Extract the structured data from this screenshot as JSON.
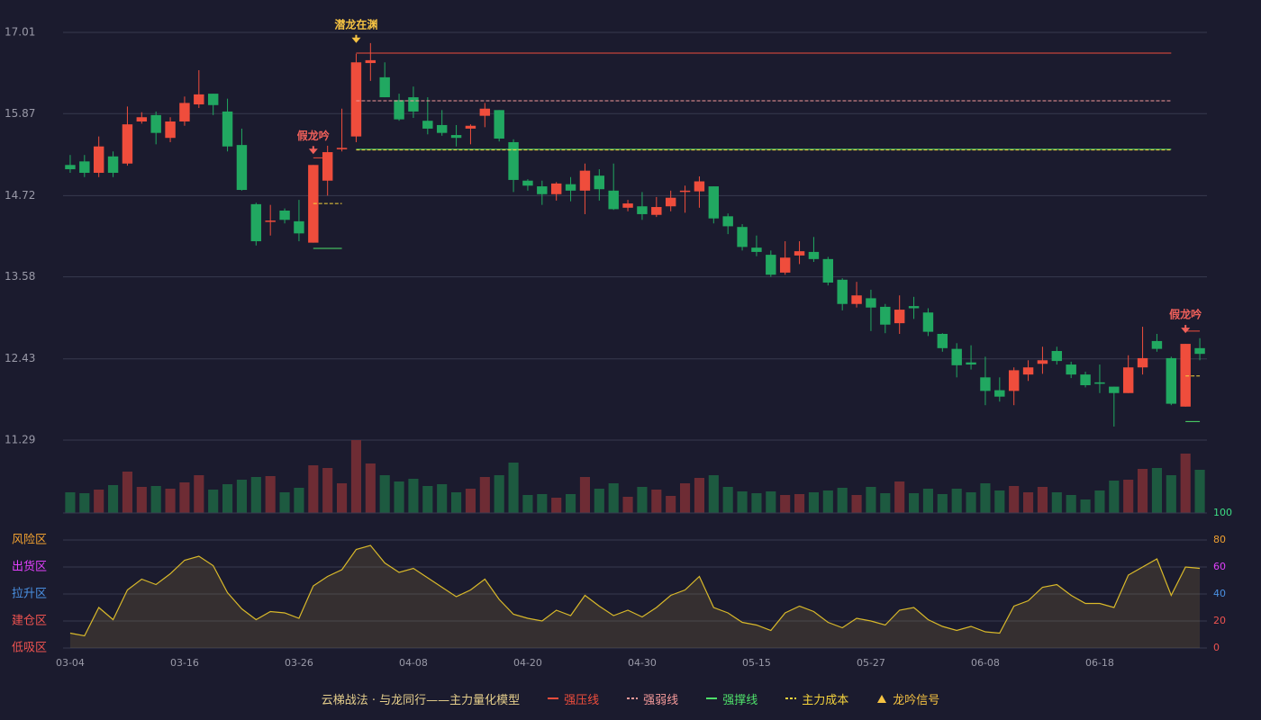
{
  "chart_data": {
    "type": "candlestick",
    "categories": [
      "03-04",
      null,
      null,
      null,
      null,
      null,
      null,
      null,
      "03-16",
      null,
      null,
      null,
      null,
      null,
      null,
      null,
      "03-26",
      null,
      null,
      null,
      null,
      null,
      null,
      null,
      "04-08",
      null,
      null,
      null,
      null,
      null,
      null,
      null,
      "04-20",
      null,
      null,
      null,
      null,
      null,
      null,
      null,
      "04-30",
      null,
      null,
      null,
      null,
      null,
      null,
      null,
      "05-15",
      null,
      null,
      null,
      null,
      null,
      null,
      null,
      "05-27",
      null,
      null,
      null,
      null,
      null,
      null,
      null,
      "06-08",
      null,
      null,
      null,
      null,
      null,
      null,
      null,
      "06-18",
      null,
      null,
      null,
      null,
      null,
      null,
      null
    ],
    "open": [
      15.15,
      15.2,
      15.04,
      15.27,
      15.17,
      15.76,
      15.85,
      15.53,
      15.76,
      16.0,
      16.15,
      15.9,
      15.43,
      14.6,
      14.37,
      14.51,
      14.36,
      14.06,
      14.93,
      15.37,
      15.55,
      16.58,
      16.38,
      16.06,
      16.1,
      15.77,
      15.71,
      15.57,
      15.66,
      15.84,
      15.92,
      15.47,
      14.93,
      14.85,
      14.74,
      14.88,
      14.79,
      15.0,
      14.79,
      14.55,
      14.57,
      14.45,
      14.57,
      14.78,
      14.78,
      14.85,
      14.43,
      14.28,
      13.99,
      13.89,
      13.64,
      13.88,
      13.93,
      13.83,
      13.54,
      13.2,
      13.28,
      13.16,
      12.93,
      13.17,
      13.08,
      12.78,
      12.57,
      12.38,
      12.17,
      11.99,
      11.98,
      12.21,
      12.36,
      12.54,
      12.35,
      12.21,
      12.1,
      12.04,
      11.95,
      12.31,
      12.68,
      12.44,
      11.76,
      12.58
    ],
    "close": [
      15.09,
      15.04,
      15.41,
      15.04,
      15.72,
      15.82,
      15.6,
      15.76,
      16.02,
      16.14,
      15.99,
      15.41,
      14.8,
      14.08,
      14.37,
      14.38,
      14.19,
      15.15,
      15.33,
      15.39,
      16.59,
      16.62,
      16.1,
      15.79,
      15.9,
      15.66,
      15.6,
      15.53,
      15.7,
      15.94,
      15.52,
      14.94,
      14.86,
      14.74,
      14.89,
      14.79,
      15.07,
      14.81,
      14.53,
      14.61,
      14.46,
      14.56,
      14.69,
      14.79,
      14.92,
      14.4,
      14.29,
      14.0,
      13.93,
      13.61,
      13.85,
      13.94,
      13.83,
      13.5,
      13.2,
      13.32,
      13.15,
      12.91,
      13.12,
      13.14,
      12.81,
      12.58,
      12.34,
      12.35,
      11.98,
      11.9,
      12.27,
      12.31,
      12.41,
      12.4,
      12.21,
      12.06,
      12.08,
      11.95,
      12.31,
      12.44,
      12.57,
      11.8,
      12.64,
      12.5
    ],
    "high": [
      15.29,
      15.29,
      15.55,
      15.34,
      15.97,
      15.89,
      15.9,
      15.82,
      16.11,
      16.48,
      16.15,
      16.08,
      15.66,
      14.62,
      14.59,
      14.54,
      14.66,
      15.15,
      15.42,
      15.94,
      16.71,
      16.86,
      16.59,
      16.15,
      16.25,
      16.1,
      15.92,
      15.71,
      15.72,
      16.02,
      15.92,
      15.51,
      14.95,
      14.93,
      14.91,
      14.98,
      15.17,
      15.09,
      15.17,
      14.66,
      14.77,
      14.7,
      14.79,
      14.86,
      14.99,
      14.85,
      14.47,
      14.32,
      14.16,
      13.95,
      14.08,
      14.08,
      14.14,
      13.86,
      13.56,
      13.51,
      13.4,
      13.2,
      13.32,
      13.3,
      13.14,
      12.79,
      12.65,
      12.62,
      12.46,
      12.17,
      12.31,
      12.41,
      12.6,
      12.6,
      12.39,
      12.25,
      12.35,
      12.04,
      12.48,
      12.88,
      12.78,
      12.46,
      12.64,
      12.72
    ],
    "low": [
      15.04,
      14.98,
      14.98,
      14.98,
      15.14,
      15.73,
      15.44,
      15.47,
      15.7,
      15.95,
      15.85,
      15.34,
      14.79,
      14.02,
      14.16,
      14.33,
      14.08,
      14.06,
      14.72,
      15.34,
      15.47,
      16.33,
      16.1,
      15.77,
      15.81,
      15.58,
      15.56,
      15.41,
      15.44,
      15.68,
      15.48,
      14.77,
      14.79,
      14.59,
      14.65,
      14.64,
      14.46,
      14.65,
      14.52,
      14.5,
      14.38,
      14.42,
      14.5,
      14.48,
      14.55,
      14.33,
      14.18,
      13.95,
      13.87,
      13.58,
      13.61,
      13.76,
      13.79,
      13.46,
      13.11,
      13.15,
      12.82,
      12.79,
      12.78,
      12.99,
      12.75,
      12.53,
      12.17,
      12.28,
      11.78,
      11.83,
      11.78,
      12.12,
      12.22,
      12.35,
      12.16,
      12.03,
      11.95,
      11.48,
      11.95,
      12.21,
      12.53,
      11.78,
      11.76,
      12.41
    ],
    "ylim": [
      11.29,
      17.01
    ],
    "yticks": [
      17.01,
      15.87,
      14.72,
      13.58,
      12.43,
      11.29
    ],
    "grid": true,
    "up_color": "#ef4d3c",
    "down_color": "#21a861",
    "volume": {
      "values": [
        23,
        22,
        26,
        31,
        46,
        29,
        30,
        27,
        34,
        42,
        26,
        32,
        37,
        40,
        41,
        23,
        28,
        53,
        50,
        33,
        81,
        55,
        42,
        35,
        38,
        30,
        32,
        23,
        27,
        40,
        42,
        56,
        20,
        21,
        17,
        21,
        40,
        27,
        33,
        18,
        29,
        26,
        19,
        33,
        39,
        42,
        29,
        24,
        22,
        24,
        20,
        21,
        23,
        25,
        28,
        20,
        29,
        22,
        35,
        22,
        27,
        21,
        27,
        23,
        33,
        25,
        30,
        23,
        29,
        23,
        20,
        15,
        25,
        36,
        37,
        49,
        50,
        42,
        66,
        48
      ],
      "up_color": "#6e2c34",
      "down_color": "#1d5a40"
    },
    "annotations": [
      {
        "text": "潜龙在渊",
        "index": 20,
        "color": "#f5c242"
      },
      {
        "text": "假龙吟",
        "index": 17,
        "color": "#f0605a"
      },
      {
        "text": "假龙吟",
        "index": 78,
        "color": "#f0605a"
      }
    ],
    "indicator": {
      "type": "area",
      "color": "#d9b92a",
      "values": [
        11,
        9,
        30,
        21,
        43,
        51,
        47,
        55,
        65,
        68,
        61,
        41,
        29,
        21,
        27,
        26,
        22,
        46,
        53,
        58,
        73,
        76,
        63,
        56,
        59,
        52,
        45,
        38,
        43,
        51,
        36,
        25,
        22,
        20,
        28,
        24,
        39,
        31,
        24,
        28,
        23,
        30,
        39,
        43,
        53,
        30,
        26,
        19,
        17,
        13,
        26,
        31,
        27,
        19,
        15,
        22,
        20,
        17,
        28,
        30,
        21,
        16,
        13,
        16,
        12,
        11,
        31,
        35,
        45,
        47,
        39,
        33,
        33,
        30,
        54,
        60,
        66,
        39,
        60,
        59
      ],
      "ylim": [
        0,
        100
      ],
      "yticks": [
        0,
        20,
        40,
        60,
        80,
        100
      ],
      "ytick_colors": [
        "#ef5350",
        "#ef5350",
        "#4a90e2",
        "#e040fb",
        "#f0a030",
        "#3ddc84"
      ],
      "zones": [
        {
          "label": "风险区",
          "value": 80,
          "color": "#f0a030"
        },
        {
          "label": "出货区",
          "value": 60,
          "color": "#e040fb"
        },
        {
          "label": "拉升区",
          "value": 40,
          "color": "#4a90e2"
        },
        {
          "label": "建仓区",
          "value": 20,
          "color": "#ef5350"
        },
        {
          "label": "低吸区",
          "value": 0,
          "color": "#ef5350"
        }
      ]
    },
    "legend": {
      "title": "云梯战法 · 与龙同行——主力量化模型",
      "items": [
        {
          "name": "强压线",
          "color": "#ef4d3c",
          "style": "solid",
          "segments": [
            {
              "start": 20,
              "end": 77,
              "value": 16.72
            },
            {
              "start": 17,
              "end": 18,
              "value": 15.25
            },
            {
              "start": 78,
              "end": 79,
              "value": 12.82
            }
          ]
        },
        {
          "name": "强弱线",
          "color": "#f59a9a",
          "style": "dashed",
          "segments": [
            {
              "start": 20,
              "end": 77,
              "value": 16.05
            }
          ]
        },
        {
          "name": "强撑线",
          "color": "#4ee06a",
          "style": "solid",
          "segments": [
            {
              "start": 20,
              "end": 77,
              "value": 15.37
            },
            {
              "start": 17,
              "end": 19,
              "value": 13.98
            },
            {
              "start": 78,
              "end": 79,
              "value": 11.55
            }
          ]
        },
        {
          "name": "主力成本",
          "color": "#f5d33c",
          "style": "dashed",
          "segments": [
            {
              "start": 20,
              "end": 77,
              "value": 15.36
            },
            {
              "start": 17,
              "end": 19,
              "value": 14.61
            },
            {
              "start": 78,
              "end": 79,
              "value": 12.19
            }
          ]
        },
        {
          "name": "龙吟信号",
          "color": "#f5c242",
          "style": "triangle"
        }
      ]
    }
  }
}
